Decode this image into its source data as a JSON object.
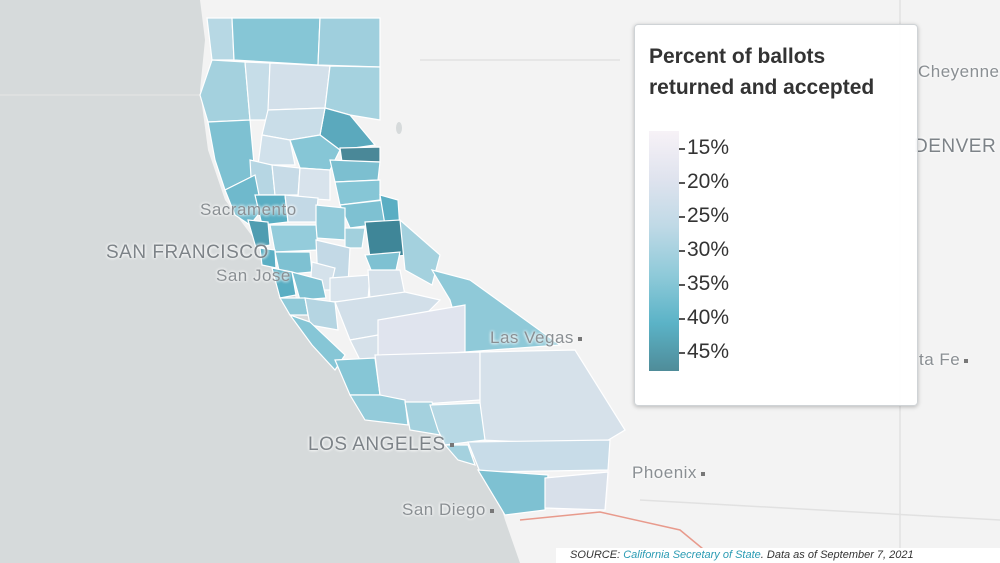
{
  "legend": {
    "title_line1": "Percent of ballots",
    "title_line2": "returned and accepted",
    "ticks": [
      "15%",
      "20%",
      "25%",
      "30%",
      "35%",
      "40%",
      "45%"
    ]
  },
  "cities": {
    "cheyenne": "Cheyenne",
    "denver": "DENVER",
    "santa_fe": "ta Fe",
    "sacramento": "Sacramento",
    "san_francisco": "SAN FRANCISCO",
    "san_jose": "San Jose",
    "las_vegas": "Las Vegas",
    "los_angeles": "LOS ANGELES",
    "phoenix": "Phoenix",
    "san_diego": "San Diego"
  },
  "source": {
    "prefix": "SOURCE: ",
    "link": "California Secretary of State",
    "suffix": ". Data as of September 7, 2021"
  },
  "colors": {
    "ocean": "#d7dbdc",
    "land": "#f3f3f3",
    "scale_low": "#f7f2f7",
    "scale_high": "#4f8c99"
  }
}
